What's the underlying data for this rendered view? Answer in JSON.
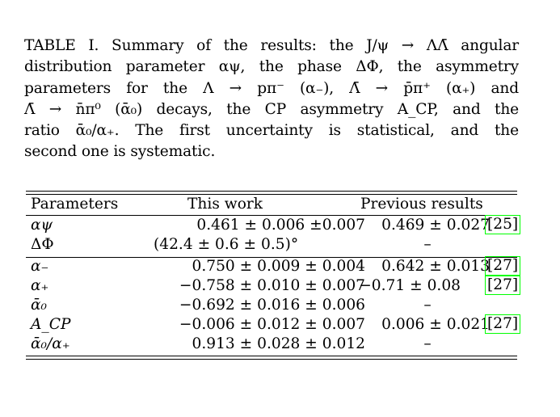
{
  "caption": {
    "lines": [
      "TABLE I. Summary of the results: the J/ψ → ΛΛ̄ angular",
      "distribution parameter αψ, the phase ΔΦ, the asymmetry",
      "parameters for the Λ → pπ⁻ (α₋), Λ̄ → p̄π⁺ (α₊) and",
      "Λ̄ → n̄π⁰ (ᾱ₀) decays, the CP asymmetry A_CP, and the",
      "ratio ᾱ₀/α₊. The first uncertainty is statistical, and the",
      "second one is systematic."
    ]
  },
  "table": {
    "headers": [
      "Parameters",
      "This work",
      "Previous results"
    ],
    "rows": [
      {
        "param": "αψ",
        "this_work": "0.461 ± 0.006 ±0.007",
        "previous": "0.469 ± 0.027",
        "ref": "[25]"
      },
      {
        "param": "ΔΦ",
        "this_work": "(42.4 ± 0.6 ± 0.5)°",
        "previous": "–",
        "ref": ""
      },
      {
        "param": "α₋",
        "this_work": "0.750 ± 0.009 ± 0.004",
        "previous": "0.642 ± 0.013",
        "ref": "[27]"
      },
      {
        "param": "α₊",
        "this_work": "−0.758 ± 0.010 ± 0.007",
        "previous": "−0.71 ± 0.08",
        "ref": "[27]"
      },
      {
        "param": "ᾱ₀",
        "this_work": "−0.692 ± 0.016 ± 0.006",
        "previous": "–",
        "ref": ""
      },
      {
        "param": "A_CP",
        "this_work": "−0.006 ± 0.012 ± 0.007",
        "previous": "0.006 ± 0.021",
        "ref": "[27]"
      },
      {
        "param": "ᾱ₀/α₊",
        "this_work": "0.913 ± 0.028 ± 0.012",
        "previous": "–",
        "ref": ""
      }
    ]
  }
}
